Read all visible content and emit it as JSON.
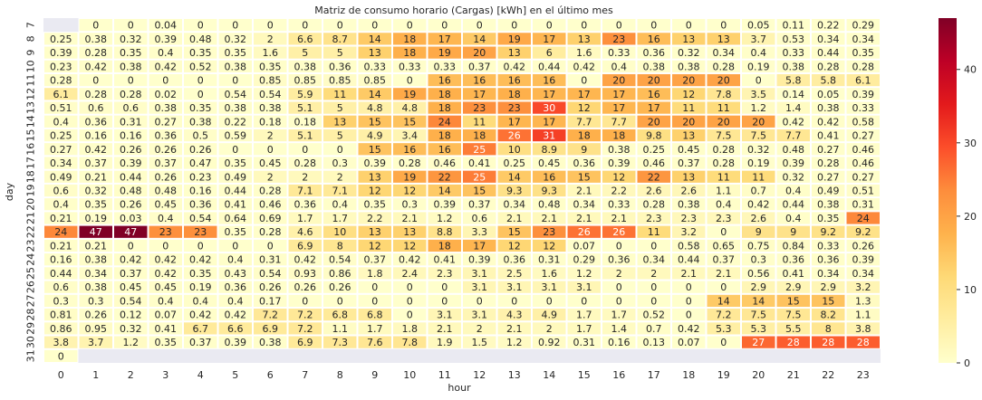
{
  "chart_data": {
    "type": "heatmap",
    "title": "Matriz de consumo horario (Cargas) [kWh] en el último mes",
    "xlabel": "hour",
    "ylabel": "day",
    "x": [
      "0",
      "1",
      "2",
      "3",
      "4",
      "5",
      "6",
      "7",
      "8",
      "9",
      "10",
      "11",
      "12",
      "13",
      "14",
      "15",
      "16",
      "17",
      "18",
      "19",
      "20",
      "21",
      "22",
      "23"
    ],
    "y": [
      "7",
      "8",
      "9",
      "10",
      "11",
      "12",
      "13",
      "14",
      "15",
      "16",
      "17",
      "18",
      "19",
      "20",
      "21",
      "22",
      "23",
      "24",
      "25",
      "26",
      "27",
      "28",
      "29",
      "30",
      "31"
    ],
    "values": [
      [
        null,
        "0",
        "0",
        "0.04",
        "0",
        "0",
        "0",
        "0",
        "0",
        "0",
        "0",
        "0",
        "0",
        "0",
        "0",
        "0",
        "0",
        "0",
        "0",
        "0",
        "0.05",
        "0.11",
        "0.22",
        "0.29"
      ],
      [
        "0.25",
        "0.38",
        "0.32",
        "0.39",
        "0.48",
        "0.32",
        "2",
        "6.6",
        "8.7",
        "14",
        "18",
        "17",
        "14",
        "19",
        "17",
        "13",
        "23",
        "16",
        "13",
        "13",
        "3.7",
        "0.53",
        "0.34",
        "0.34"
      ],
      [
        "0.39",
        "0.28",
        "0.35",
        "0.4",
        "0.35",
        "0.35",
        "1.6",
        "5",
        "5",
        "13",
        "18",
        "19",
        "20",
        "13",
        "6",
        "1.6",
        "0.33",
        "0.36",
        "0.32",
        "0.34",
        "0.4",
        "0.33",
        "0.44",
        "0.35"
      ],
      [
        "0.23",
        "0.42",
        "0.38",
        "0.42",
        "0.52",
        "0.38",
        "0.35",
        "0.38",
        "0.36",
        "0.33",
        "0.33",
        "0.33",
        "0.37",
        "0.42",
        "0.44",
        "0.42",
        "0.4",
        "0.38",
        "0.38",
        "0.28",
        "0.19",
        "0.38",
        "0.28",
        "0.28"
      ],
      [
        "0.28",
        "0",
        "0",
        "0",
        "0",
        "0",
        "0.85",
        "0.85",
        "0.85",
        "0.85",
        "0",
        "16",
        "16",
        "16",
        "16",
        "0",
        "20",
        "20",
        "20",
        "20",
        "0",
        "5.8",
        "5.8",
        "6.1"
      ],
      [
        "6.1",
        "0.28",
        "0.28",
        "0.02",
        "0",
        "0.54",
        "0.54",
        "5.9",
        "11",
        "14",
        "19",
        "18",
        "17",
        "18",
        "17",
        "17",
        "17",
        "16",
        "12",
        "7.8",
        "3.5",
        "0.14",
        "0.05",
        "0.39"
      ],
      [
        "0.51",
        "0.6",
        "0.6",
        "0.38",
        "0.35",
        "0.38",
        "0.38",
        "5.1",
        "5",
        "4.8",
        "4.8",
        "18",
        "23",
        "23",
        "30",
        "12",
        "17",
        "17",
        "11",
        "11",
        "1.2",
        "1.4",
        "0.38",
        "0.33"
      ],
      [
        "0.4",
        "0.36",
        "0.31",
        "0.27",
        "0.38",
        "0.22",
        "0.18",
        "0.18",
        "13",
        "15",
        "15",
        "24",
        "11",
        "17",
        "17",
        "7.7",
        "7.7",
        "20",
        "20",
        "20",
        "20",
        "0.42",
        "0.42",
        "0.58"
      ],
      [
        "0.25",
        "0.16",
        "0.16",
        "0.36",
        "0.5",
        "0.59",
        "2",
        "5.1",
        "5",
        "4.9",
        "3.4",
        "18",
        "18",
        "26",
        "31",
        "18",
        "18",
        "9.8",
        "13",
        "7.5",
        "7.5",
        "7.7",
        "0.41",
        "0.27"
      ],
      [
        "0.27",
        "0.42",
        "0.26",
        "0.26",
        "0.26",
        "0",
        "0",
        "0",
        "0",
        "15",
        "16",
        "16",
        "25",
        "10",
        "8.9",
        "9",
        "0.38",
        "0.25",
        "0.45",
        "0.28",
        "0.32",
        "0.48",
        "0.27",
        "0.46"
      ],
      [
        "0.34",
        "0.37",
        "0.39",
        "0.37",
        "0.47",
        "0.35",
        "0.45",
        "0.28",
        "0.3",
        "0.39",
        "0.28",
        "0.46",
        "0.41",
        "0.25",
        "0.45",
        "0.36",
        "0.39",
        "0.46",
        "0.37",
        "0.28",
        "0.19",
        "0.39",
        "0.28",
        "0.46"
      ],
      [
        "0.49",
        "0.21",
        "0.44",
        "0.26",
        "0.23",
        "0.49",
        "2",
        "2",
        "2",
        "13",
        "19",
        "22",
        "25",
        "14",
        "16",
        "15",
        "12",
        "22",
        "13",
        "11",
        "11",
        "0.32",
        "0.27",
        "0.27"
      ],
      [
        "0.6",
        "0.32",
        "0.48",
        "0.48",
        "0.16",
        "0.44",
        "0.28",
        "7.1",
        "7.1",
        "12",
        "12",
        "14",
        "15",
        "9.3",
        "9.3",
        "2.1",
        "2.2",
        "2.6",
        "2.6",
        "1.1",
        "0.7",
        "0.4",
        "0.49",
        "0.51"
      ],
      [
        "0.4",
        "0.35",
        "0.26",
        "0.45",
        "0.36",
        "0.41",
        "0.46",
        "0.36",
        "0.4",
        "0.35",
        "0.3",
        "0.39",
        "0.37",
        "0.34",
        "0.48",
        "0.34",
        "0.33",
        "0.28",
        "0.38",
        "0.4",
        "0.42",
        "0.44",
        "0.38",
        "0.31"
      ],
      [
        "0.21",
        "0.19",
        "0.03",
        "0.4",
        "0.54",
        "0.64",
        "0.69",
        "1.7",
        "1.7",
        "2.2",
        "2.1",
        "1.2",
        "0.6",
        "2.1",
        "2.1",
        "2.1",
        "2.1",
        "2.3",
        "2.3",
        "2.3",
        "2.6",
        "0.4",
        "0.35",
        "24"
      ],
      [
        "24",
        "47",
        "47",
        "23",
        "23",
        "0.35",
        "0.28",
        "4.6",
        "10",
        "13",
        "13",
        "8.8",
        "3.3",
        "15",
        "23",
        "26",
        "26",
        "11",
        "3.2",
        "0",
        "9",
        "9",
        "9.2",
        "9.2"
      ],
      [
        "0.21",
        "0.21",
        "0",
        "0",
        "0",
        "0",
        "0",
        "6.9",
        "8",
        "12",
        "12",
        "18",
        "17",
        "12",
        "12",
        "0.07",
        "0",
        "0",
        "0.58",
        "0.65",
        "0.75",
        "0.84",
        "0.33",
        "0.26"
      ],
      [
        "0.16",
        "0.38",
        "0.42",
        "0.42",
        "0.42",
        "0.4",
        "0.31",
        "0.42",
        "0.54",
        "0.37",
        "0.42",
        "0.41",
        "0.39",
        "0.36",
        "0.31",
        "0.29",
        "0.36",
        "0.34",
        "0.44",
        "0.37",
        "0.3",
        "0.36",
        "0.36",
        "0.39"
      ],
      [
        "0.44",
        "0.34",
        "0.37",
        "0.42",
        "0.35",
        "0.43",
        "0.54",
        "0.93",
        "0.86",
        "1.8",
        "2.4",
        "2.3",
        "3.1",
        "2.5",
        "1.6",
        "1.2",
        "2",
        "2",
        "2.1",
        "2.1",
        "0.56",
        "0.41",
        "0.34",
        "0.34"
      ],
      [
        "0.6",
        "0.38",
        "0.45",
        "0.45",
        "0.19",
        "0.36",
        "0.26",
        "0.26",
        "0.26",
        "0",
        "0",
        "0",
        "3.1",
        "3.1",
        "3.1",
        "3.1",
        "0",
        "0",
        "0",
        "0",
        "2.9",
        "2.9",
        "2.9",
        "3.2"
      ],
      [
        "0.3",
        "0.3",
        "0.54",
        "0.4",
        "0.4",
        "0.4",
        "0.17",
        "0",
        "0",
        "0",
        "0",
        "0",
        "0",
        "0",
        "0",
        "0",
        "0",
        "0",
        "0",
        "14",
        "14",
        "15",
        "15",
        "1.3"
      ],
      [
        "0.81",
        "0.26",
        "0.12",
        "0.07",
        "0.42",
        "0.42",
        "7.2",
        "7.2",
        "6.8",
        "6.8",
        "0",
        "3.1",
        "3.1",
        "4.3",
        "4.9",
        "1.7",
        "1.7",
        "0.52",
        "0",
        "7.2",
        "7.5",
        "7.5",
        "8.2",
        "1.1"
      ],
      [
        "0.86",
        "0.95",
        "0.32",
        "0.41",
        "6.7",
        "6.6",
        "6.9",
        "7.2",
        "1.1",
        "1.7",
        "1.8",
        "2.1",
        "2",
        "2.1",
        "2",
        "1.7",
        "1.4",
        "0.7",
        "0.42",
        "5.3",
        "5.3",
        "5.5",
        "8",
        "3.8"
      ],
      [
        "3.8",
        "3.7",
        "1.2",
        "0.35",
        "0.37",
        "0.39",
        "0.38",
        "6.9",
        "7.3",
        "7.6",
        "7.8",
        "1.9",
        "1.5",
        "1.2",
        "0.92",
        "0.31",
        "0.16",
        "0.13",
        "0.07",
        "0",
        "27",
        "28",
        "28",
        "28"
      ],
      [
        "0",
        null,
        null,
        null,
        null,
        null,
        null,
        null,
        null,
        null,
        null,
        null,
        null,
        null,
        null,
        null,
        null,
        null,
        null,
        null,
        null,
        null,
        null,
        null
      ]
    ],
    "colorbar": {
      "ticks": [
        "0",
        "10",
        "20",
        "30",
        "40"
      ],
      "range": [
        0,
        47
      ],
      "colormap": "YlOrRd"
    },
    "missing_color": "#eaeaf2",
    "grid": false,
    "legend": "colorbar-right"
  }
}
